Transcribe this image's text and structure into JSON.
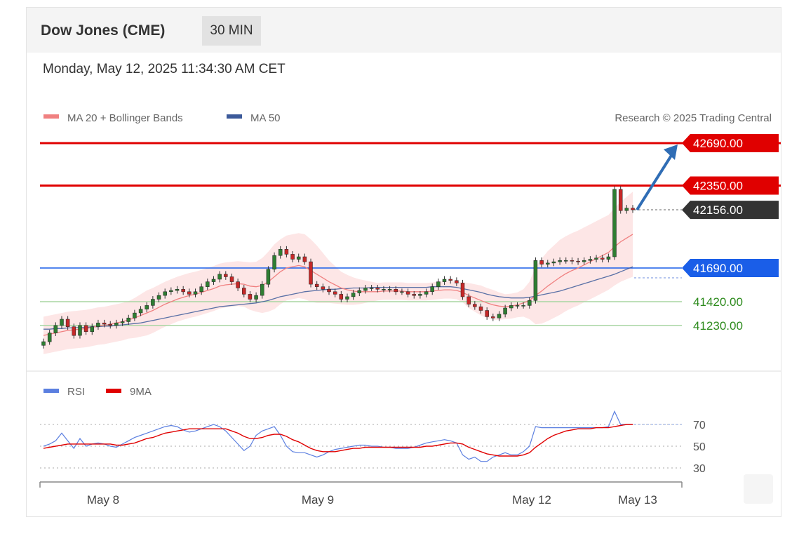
{
  "header": {
    "title": "Dow Jones (CME)",
    "interval": "30 MIN",
    "timestamp": "Monday, May 12, 2025 11:34:30 AM CET"
  },
  "legend": {
    "ma20": "MA 20 + Bollinger Bands",
    "ma50": "MA 50",
    "credit": "Research © 2025 Trading Central",
    "rsi": "RSI",
    "rsi_ma": "9MA"
  },
  "colors": {
    "ma20": "#f08080",
    "ma50": "#3c5a9a",
    "bollinger": "#fde0e0",
    "resistance": "#e00000",
    "pivot": "#1a5ee8",
    "support": "#a8d5a2",
    "support_text": "#2e8b1e",
    "candle_up": "#2e7d32",
    "candle_down": "#c62828",
    "rsi": "#5b7fe0",
    "rsi_ma": "#e00000",
    "arrow": "#2f6db5",
    "last_price": "#333333"
  },
  "chart_data": {
    "type": "line",
    "title": "Dow Jones (CME)",
    "subtitle": "30 MIN",
    "x_labels": [
      "May 8",
      "May 9",
      "May 12",
      "May 13"
    ],
    "levels": [
      {
        "value": 42690.0,
        "label": "42690.00",
        "kind": "resistance"
      },
      {
        "value": 42350.0,
        "label": "42350.00",
        "kind": "resistance"
      },
      {
        "value": 42156.0,
        "label": "42156.00",
        "kind": "last"
      },
      {
        "value": 41690.0,
        "label": "41690.00",
        "kind": "pivot"
      },
      {
        "value": 41420.0,
        "label": "41420.00",
        "kind": "support"
      },
      {
        "value": 41230.0,
        "label": "41230.00",
        "kind": "support"
      }
    ],
    "price_series": [
      41100,
      41170,
      41230,
      41280,
      41220,
      41150,
      41230,
      41180,
      41220,
      41250,
      41240,
      41230,
      41250,
      41260,
      41290,
      41330,
      41360,
      41390,
      41440,
      41470,
      41500,
      41510,
      41520,
      41500,
      41480,
      41500,
      41540,
      41580,
      41600,
      41640,
      41620,
      41580,
      41530,
      41480,
      41440,
      41470,
      41560,
      41680,
      41790,
      41840,
      41800,
      41760,
      41780,
      41740,
      41560,
      41540,
      41520,
      41500,
      41480,
      41440,
      41460,
      41490,
      41510,
      41530,
      41530,
      41520,
      41520,
      41520,
      41500,
      41500,
      41480,
      41470,
      41480,
      41500,
      41540,
      41580,
      41600,
      41590,
      41570,
      41460,
      41400,
      41380,
      41350,
      41300,
      41290,
      41320,
      41370,
      41390,
      41390,
      41390,
      41430,
      41750,
      41720,
      41730,
      41740,
      41750,
      41750,
      41745,
      41740,
      41750,
      41760,
      41770,
      41760,
      41780,
      42320,
      42150,
      42170,
      42156
    ],
    "ma20_series": [
      41150,
      41160,
      41170,
      41180,
      41190,
      41195,
      41200,
      41205,
      41215,
      41225,
      41230,
      41240,
      41250,
      41260,
      41275,
      41290,
      41310,
      41330,
      41350,
      41375,
      41400,
      41420,
      41440,
      41455,
      41470,
      41480,
      41495,
      41510,
      41525,
      41545,
      41555,
      41560,
      41565,
      41560,
      41545,
      41540,
      41550,
      41580,
      41620,
      41660,
      41690,
      41700,
      41710,
      41700,
      41670,
      41640,
      41610,
      41580,
      41555,
      41530,
      41515,
      41505,
      41500,
      41500,
      41500,
      41500,
      41505,
      41505,
      41505,
      41505,
      41500,
      41500,
      41500,
      41500,
      41505,
      41510,
      41515,
      41515,
      41510,
      41495,
      41470,
      41450,
      41430,
      41410,
      41395,
      41385,
      41380,
      41385,
      41395,
      41410,
      41430,
      41470,
      41505,
      41545,
      41580,
      41615,
      41645,
      41670,
      41690,
      41715,
      41740,
      41765,
      41790,
      41815,
      41860,
      41900,
      41930,
      41960
    ],
    "ma50_series": [
      41200,
      41200,
      41205,
      41205,
      41210,
      41210,
      41215,
      41215,
      41220,
      41220,
      41225,
      41225,
      41230,
      41235,
      41240,
      41245,
      41250,
      41260,
      41270,
      41280,
      41290,
      41300,
      41310,
      41320,
      41330,
      41340,
      41350,
      41360,
      41370,
      41380,
      41385,
      41390,
      41395,
      41400,
      41405,
      41410,
      41420,
      41430,
      41445,
      41460,
      41470,
      41480,
      41490,
      41500,
      41505,
      41510,
      41515,
      41520,
      41520,
      41525,
      41525,
      41530,
      41530,
      41530,
      41535,
      41535,
      41535,
      41535,
      41535,
      41535,
      41535,
      41535,
      41535,
      41535,
      41540,
      41540,
      41540,
      41540,
      41535,
      41525,
      41515,
      41505,
      41495,
      41480,
      41470,
      41460,
      41455,
      41450,
      41450,
      41450,
      41455,
      41465,
      41475,
      41485,
      41495,
      41505,
      41520,
      41535,
      41550,
      41565,
      41580,
      41595,
      41610,
      41625,
      41640,
      41660,
      41680,
      41700
    ],
    "bollinger_width": [
      150,
      150,
      150,
      150,
      150,
      150,
      150,
      150,
      150,
      150,
      150,
      150,
      150,
      150,
      150,
      160,
      170,
      180,
      180,
      180,
      180,
      180,
      180,
      180,
      180,
      180,
      180,
      180,
      180,
      180,
      180,
      180,
      180,
      180,
      190,
      200,
      220,
      240,
      260,
      260,
      260,
      260,
      260,
      260,
      250,
      230,
      200,
      170,
      150,
      130,
      120,
      110,
      100,
      90,
      80,
      70,
      70,
      70,
      70,
      70,
      70,
      70,
      70,
      70,
      70,
      70,
      70,
      70,
      70,
      80,
      100,
      110,
      120,
      120,
      120,
      110,
      100,
      100,
      100,
      110,
      150,
      230,
      260,
      280,
      290,
      300,
      300,
      300,
      300,
      300,
      300,
      300,
      300,
      300,
      310,
      320,
      330,
      340
    ],
    "rsi": {
      "ticks": [
        70,
        50,
        30
      ],
      "rsi_series": [
        50,
        52,
        55,
        62,
        55,
        48,
        57,
        50,
        52,
        53,
        52,
        50,
        49,
        52,
        55,
        58,
        60,
        62,
        64,
        66,
        68,
        69,
        68,
        65,
        63,
        64,
        66,
        68,
        70,
        68,
        64,
        58,
        52,
        46,
        50,
        60,
        64,
        66,
        68,
        60,
        50,
        45,
        44,
        44,
        42,
        40,
        42,
        45,
        47,
        48,
        49,
        50,
        51,
        51,
        50,
        50,
        49,
        49,
        48,
        48,
        48,
        49,
        51,
        53,
        54,
        55,
        56,
        55,
        53,
        42,
        38,
        40,
        36,
        36,
        40,
        42,
        44,
        42,
        42,
        45,
        50,
        68,
        67,
        67,
        67,
        67,
        67,
        67,
        67,
        67,
        67,
        67,
        67,
        68,
        82,
        70,
        70,
        70
      ],
      "ma_series": [
        48,
        49,
        50,
        51,
        52,
        52,
        52,
        52,
        52,
        52,
        52,
        52,
        51,
        51,
        52,
        53,
        55,
        57,
        58,
        60,
        62,
        63,
        64,
        65,
        66,
        66,
        66,
        66,
        66,
        66,
        66,
        64,
        62,
        59,
        57,
        57,
        58,
        60,
        61,
        61,
        59,
        56,
        54,
        51,
        48,
        46,
        45,
        45,
        45,
        46,
        47,
        48,
        48,
        49,
        49,
        49,
        49,
        49,
        49,
        49,
        49,
        49,
        49,
        50,
        50,
        51,
        52,
        53,
        53,
        52,
        49,
        47,
        45,
        43,
        42,
        41,
        41,
        41,
        41,
        42,
        44,
        49,
        53,
        57,
        60,
        62,
        64,
        65,
        66,
        66,
        66,
        67,
        67,
        67,
        68,
        69,
        70,
        70
      ]
    }
  }
}
